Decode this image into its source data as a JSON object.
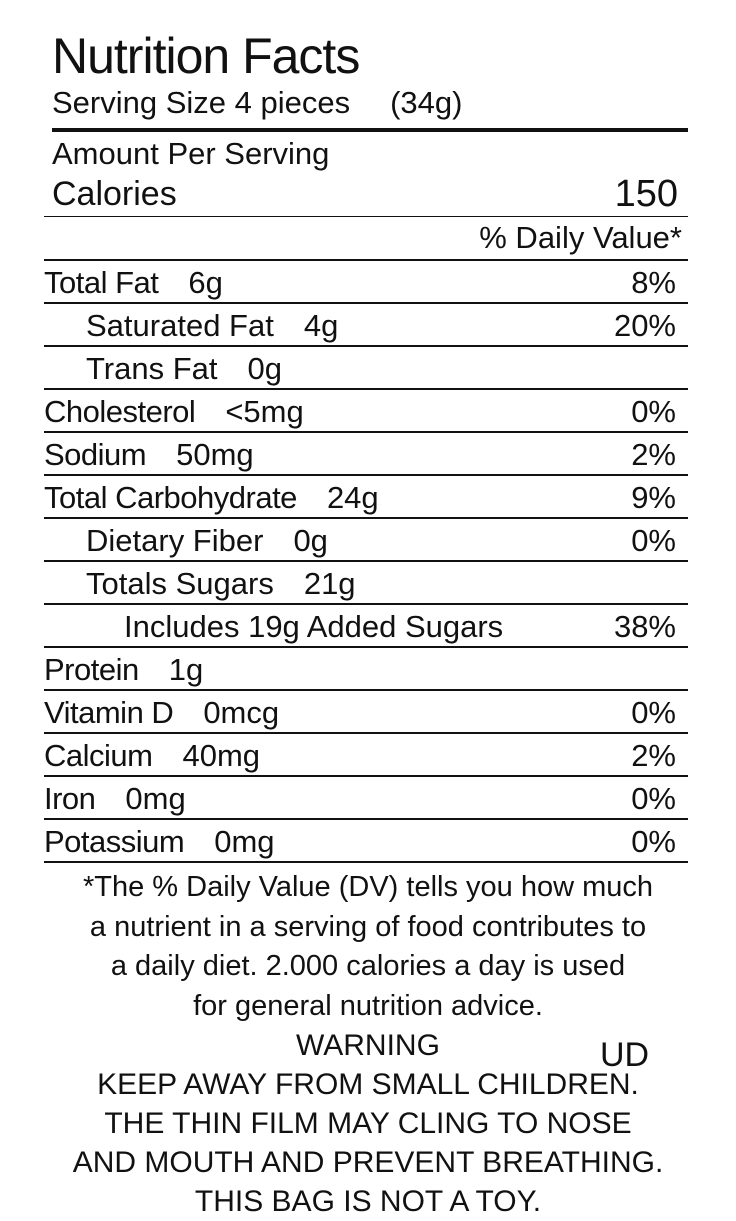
{
  "header": {
    "title": "Nutrition Facts",
    "serving_size": "Serving Size 4 pieces",
    "serving_weight": "(34g)"
  },
  "calories": {
    "amount_per_serving": "Amount Per Serving",
    "label": "Calories",
    "value": "150"
  },
  "daily_value_header": "% Daily Value*",
  "nutrients": [
    {
      "name": "Total Fat",
      "amount": "6g",
      "daily_value": "8%"
    },
    {
      "name": "Saturated Fat",
      "amount": "4g",
      "daily_value": "20%"
    },
    {
      "name": "Trans Fat",
      "amount": "0g"
    },
    {
      "name": "Cholesterol",
      "amount": "<5mg",
      "daily_value": "0%"
    },
    {
      "name": "Sodium",
      "amount": "50mg",
      "daily_value": "2%"
    },
    {
      "name": "Total Carbohydrate",
      "amount": "24g",
      "daily_value": "9%"
    },
    {
      "name": "Dietary Fiber",
      "amount": "0g",
      "daily_value": "0%"
    },
    {
      "name": "Totals Sugars",
      "amount": "21g"
    },
    {
      "name": "Includes 19g Added Sugars",
      "daily_value": "38%"
    },
    {
      "name": "Protein",
      "amount": "1g"
    },
    {
      "name": "Vitamin D",
      "amount": "0mcg",
      "daily_value": "0%"
    },
    {
      "name": "Calcium",
      "amount": "40mg",
      "daily_value": "2%"
    },
    {
      "name": "Iron",
      "amount": "0mg",
      "daily_value": "0%"
    },
    {
      "name": "Potassium",
      "amount": "0mg",
      "daily_value": "0%"
    }
  ],
  "footnote": [
    "*The % Daily Value (DV) tells you how much",
    "a nutrient in a serving of food contributes to",
    "a daily diet. 2.000 calories a day is used",
    "for general nutrition advice."
  ],
  "warning": {
    "title": "WARNING",
    "lines": [
      "KEEP AWAY FROM SMALL CHILDREN.",
      "THE THIN FILM MAY CLING TO NOSE",
      "AND MOUTH AND PREVENT BREATHING.",
      "THIS BAG IS NOT A TOY."
    ],
    "mark": "UD"
  }
}
